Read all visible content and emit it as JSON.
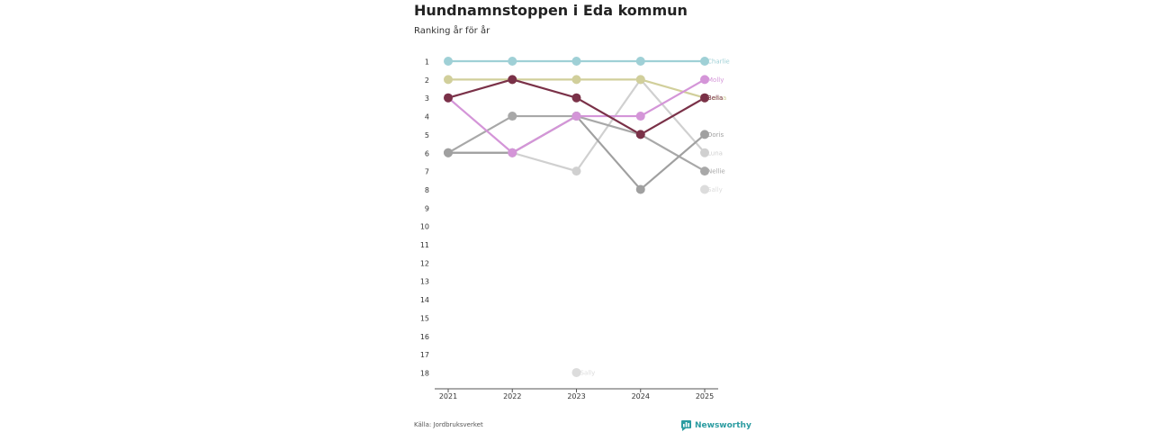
{
  "title": "Hundnamnstoppen i Eda kommun",
  "subtitle": "Ranking år för år",
  "source": "Källa: Jordbruksverket",
  "brand": "Newsworthy",
  "colors": {
    "brand": "#2b9ca1"
  },
  "chart_data": {
    "type": "line",
    "title": "Hundnamnstoppen i Eda kommun",
    "subtitle": "Ranking år för år",
    "xlabel": "",
    "ylabel": "",
    "x": [
      "2021",
      "2022",
      "2023",
      "2024",
      "2025"
    ],
    "ylim": [
      1,
      18
    ],
    "y_ticks": [
      1,
      2,
      3,
      4,
      5,
      6,
      7,
      8,
      9,
      10,
      11,
      12,
      13,
      14,
      15,
      16,
      17,
      18
    ],
    "y_inverted": true,
    "series": [
      {
        "name": "Charlie",
        "color": "#9fd0d6",
        "values": [
          1,
          1,
          1,
          1,
          1
        ]
      },
      {
        "name": "Molly",
        "color": "#d495d8",
        "values": [
          3,
          6,
          4,
          4,
          2
        ]
      },
      {
        "name": "Sansa",
        "color": "#d1cf9b",
        "values": [
          2,
          2,
          2,
          2,
          3
        ]
      },
      {
        "name": "Bella",
        "color": "#7a3148",
        "values": [
          3,
          2,
          3,
          5,
          3
        ]
      },
      {
        "name": "Doris",
        "color": "#a0a0a0",
        "values": [
          6,
          6,
          4,
          8,
          5
        ]
      },
      {
        "name": "Luna",
        "color": "#d0d0d0",
        "values": [
          6,
          6,
          7,
          2,
          6
        ]
      },
      {
        "name": "Nellie",
        "color": "#a8a8a8",
        "values": [
          6,
          4,
          4,
          5,
          7
        ]
      },
      {
        "name": "Sally",
        "color": "#dcdcdc",
        "values": [
          null,
          null,
          18,
          null,
          8
        ]
      }
    ],
    "point_labels": [
      {
        "series": "Sally",
        "x": "2023",
        "y": 18,
        "text": "Sally"
      }
    ]
  }
}
